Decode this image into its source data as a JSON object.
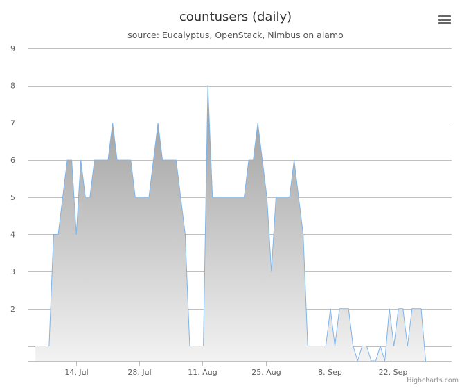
{
  "header": {
    "title": "countusers (daily)",
    "subtitle": "source: Eucalyptus, OpenStack, Nimbus on alamo",
    "menu_icon": "hamburger-menu-icon"
  },
  "credits": "Highcharts.com",
  "chart_data": {
    "type": "area",
    "title": "countusers (daily)",
    "subtitle": "source: Eucalyptus, OpenStack, Nimbus on alamo",
    "xlabel": "",
    "ylabel": "",
    "ylim": [
      0.6,
      9
    ],
    "y_ticks": [
      2,
      3,
      4,
      5,
      6,
      7,
      8,
      9
    ],
    "x_ticks": [
      "14. Jul",
      "28. Jul",
      "11. Aug",
      "25. Aug",
      "8. Sep",
      "22. Sep"
    ],
    "x_tick_positions": [
      9.7,
      23.6,
      37.6,
      51.6,
      65.6,
      79.5
    ],
    "xlim": [
      0,
      92.4
    ],
    "grid": true,
    "legend": "none",
    "colors": {
      "line": "#7cb5ec",
      "fill_top": "#999999",
      "fill_bottom": "#f2f2f2",
      "grid": "#c0c0c0"
    },
    "series": [
      {
        "points": [
          [
            0.8,
            1
          ],
          [
            3.8,
            1
          ],
          [
            4.8,
            4
          ],
          [
            5.8,
            4
          ],
          [
            7.8,
            6
          ],
          [
            8.8,
            6
          ],
          [
            9.8,
            4
          ],
          [
            10.8,
            6
          ],
          [
            11.8,
            5
          ],
          [
            12.8,
            5
          ],
          [
            13.8,
            6
          ],
          [
            16.8,
            6
          ],
          [
            17.8,
            7
          ],
          [
            18.8,
            6
          ],
          [
            21.8,
            6
          ],
          [
            22.8,
            5
          ],
          [
            25.8,
            5
          ],
          [
            27.8,
            7
          ],
          [
            28.8,
            6
          ],
          [
            31.8,
            6
          ],
          [
            33.8,
            4
          ],
          [
            34.8,
            1
          ],
          [
            37.8,
            1
          ],
          [
            38.8,
            8
          ],
          [
            39.8,
            5
          ],
          [
            46.8,
            5
          ],
          [
            47.8,
            6
          ],
          [
            48.8,
            6
          ],
          [
            49.8,
            7
          ],
          [
            50.8,
            6
          ],
          [
            51.8,
            5
          ],
          [
            52.8,
            3
          ],
          [
            53.8,
            5
          ],
          [
            56.8,
            5
          ],
          [
            57.8,
            6
          ],
          [
            58.8,
            5
          ],
          [
            59.8,
            4
          ],
          [
            60.8,
            1
          ],
          [
            64.8,
            1
          ],
          [
            65.8,
            2
          ],
          [
            66.8,
            1
          ],
          [
            67.8,
            2
          ],
          [
            69.8,
            2
          ],
          [
            70.8,
            1
          ],
          [
            71.8,
            0.6
          ],
          [
            72.8,
            1
          ],
          [
            73.8,
            1
          ],
          [
            74.8,
            0.6
          ],
          [
            75.8,
            0.6
          ],
          [
            76.8,
            1
          ],
          [
            77.8,
            0.6
          ],
          [
            78.8,
            2
          ],
          [
            79.8,
            1
          ],
          [
            80.8,
            2
          ],
          [
            81.8,
            2
          ],
          [
            82.8,
            1
          ],
          [
            83.8,
            2
          ],
          [
            85.8,
            2
          ],
          [
            86.8,
            0.6
          ]
        ]
      }
    ]
  }
}
